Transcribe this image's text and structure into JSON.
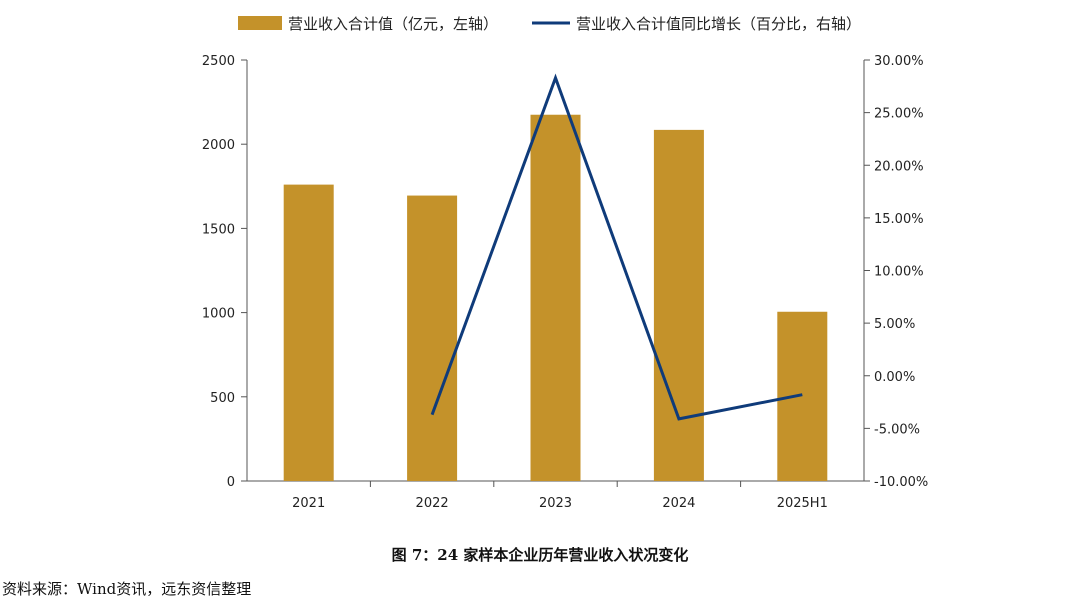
{
  "chart_data": {
    "type": "bar+line",
    "categories": [
      "2021",
      "2022",
      "2023",
      "2024",
      "2025H1"
    ],
    "series": [
      {
        "name": "营业收入合计值（亿元，左轴）",
        "type": "bar",
        "axis": "left",
        "values": [
          1760,
          1695,
          2175,
          2085,
          1005
        ]
      },
      {
        "name": "营业收入合计值同比增长（百分比，右轴）",
        "type": "line",
        "axis": "right",
        "values": [
          null,
          -3.7,
          28.3,
          -4.1,
          -1.8
        ]
      }
    ],
    "left_axis": {
      "ylim": [
        0,
        2500
      ],
      "ticks": [
        "0",
        "500",
        "1000",
        "1500",
        "2000",
        "2500"
      ]
    },
    "right_axis": {
      "ylim": [
        -10,
        30
      ],
      "ticks": [
        "-10.00%",
        "-5.00%",
        "0.00%",
        "5.00%",
        "10.00%",
        "15.00%",
        "20.00%",
        "25.00%",
        "30.00%"
      ]
    },
    "legend_position": "top",
    "grid": false,
    "colors": {
      "bar": "#C4922A",
      "line": "#0F3B7A"
    }
  },
  "caption": "图 7：24 家样本企业历年营业收入状况变化",
  "source": "资料来源：Wind资讯，远东资信整理"
}
